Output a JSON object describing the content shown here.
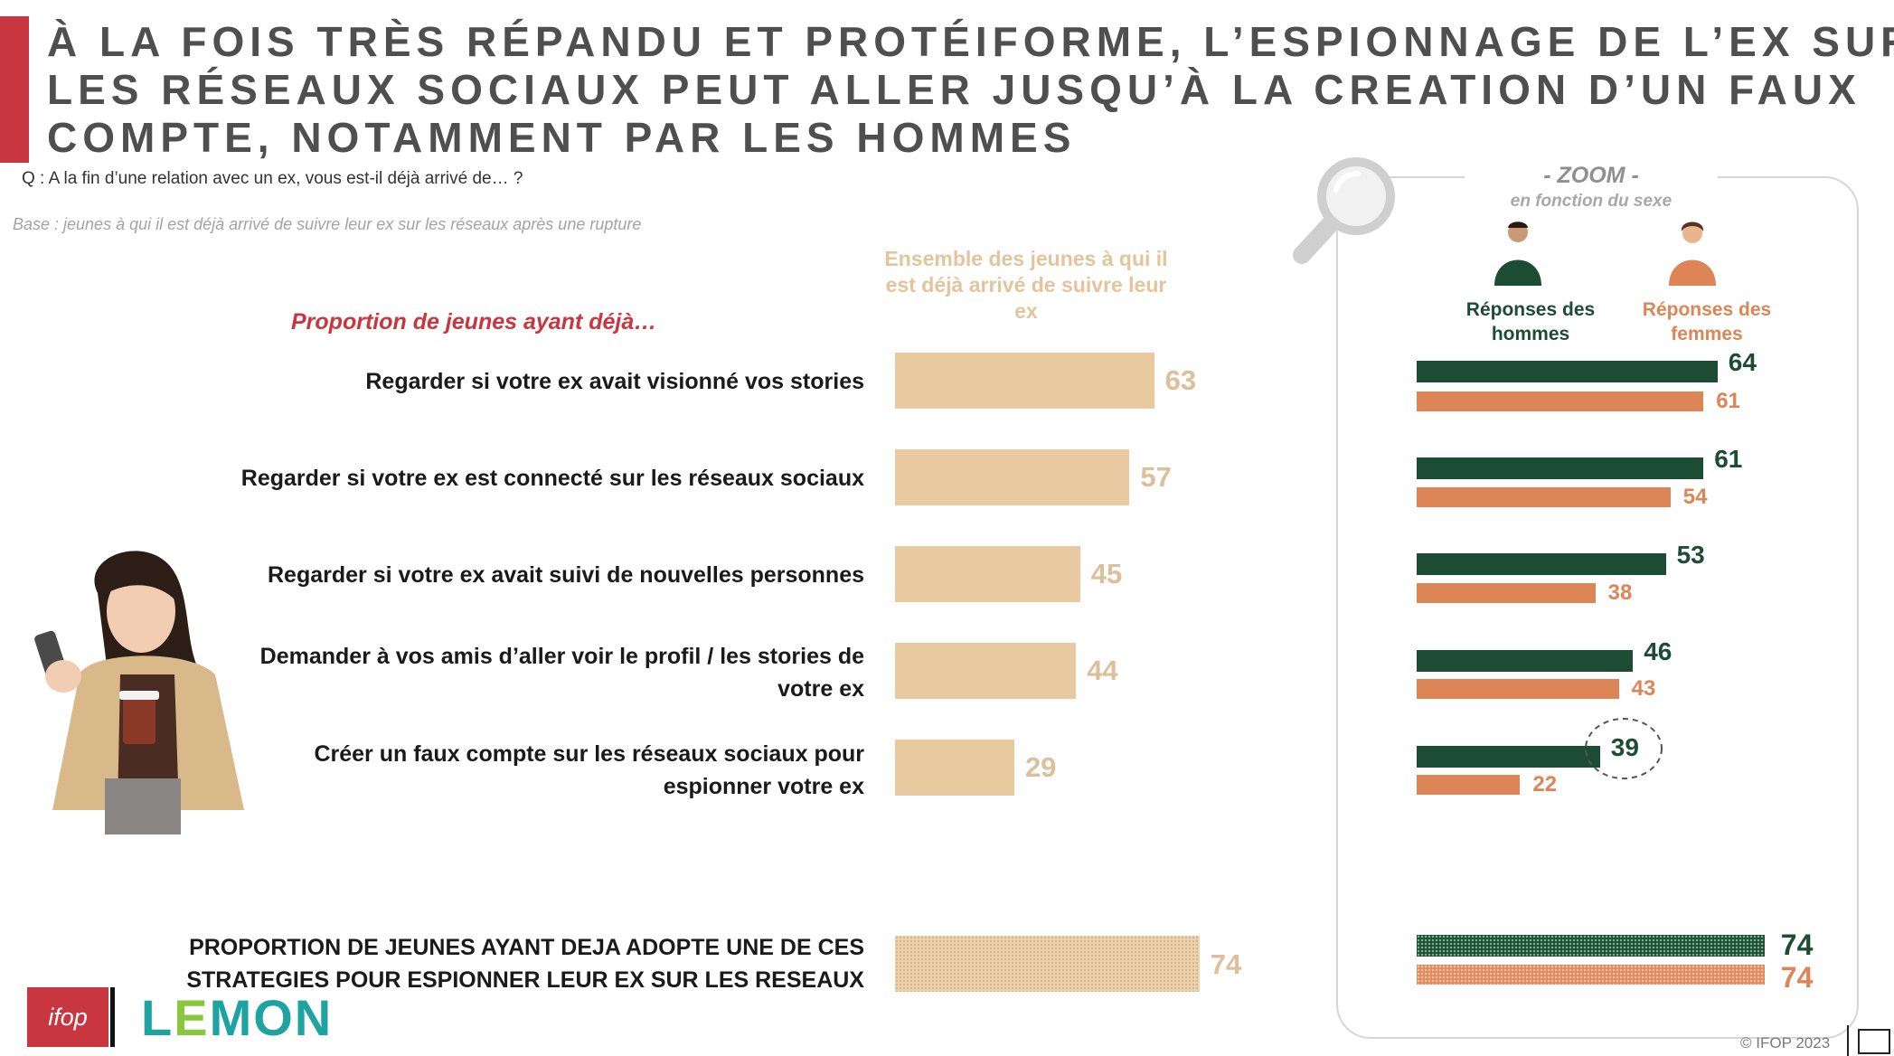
{
  "title_lines": [
    "À LA FOIS TRÈS RÉPANDU ET PROTÉIFORME, L’ESPIONNAGE DE L’EX SUR",
    "LES RÉSEAUX SOCIAUX PEUT ALLER JUSQU’À LA CREATION D’UN FAUX",
    "COMPTE, NOTAMMENT PAR LES HOMMES"
  ],
  "question": "Q : A la fin d’une relation avec un ex, vous est-il déjà arrivé de… ?",
  "base": "Base : jeunes à qui il est déjà arrivé de suivre leur ex sur les réseaux après une rupture",
  "proportion_label": "Proportion de jeunes ayant déjà…",
  "column_header": "Ensemble des jeunes à qui il est déjà arrivé de suivre leur ex",
  "zoom": {
    "title": "- ZOOM -",
    "subtitle": "en fonction du sexe",
    "men_label": "Réponses des hommes",
    "women_label": "Réponses des femmes"
  },
  "total_label": "PROPORTION DE JEUNES AYANT DEJA ADOPTE UNE DE CES STRATEGIES POUR ESPIONNER LEUR EX SUR LES RESEAUX",
  "logos": {
    "ifop": "ifop",
    "lemon_prefix": "L",
    "lemon_e": "E",
    "lemon_suffix": "MON"
  },
  "copyright": "© IFOP 2023",
  "colors": {
    "overall": "#e9c99f",
    "men": "#1c4d34",
    "women": "#dd8556",
    "accent": "#c8363f"
  },
  "chart_data": [
    {
      "type": "bar",
      "orientation": "horizontal",
      "title": "Ensemble des jeunes à qui il est déjà arrivé de suivre leur ex",
      "categories": [
        "Regarder si votre ex avait visionné vos stories",
        "Regarder si votre ex est connecté sur les réseaux sociaux",
        "Regarder si votre ex avait suivi de nouvelles personnes",
        "Demander à vos amis d’aller voir le profil / les stories de votre ex",
        "Créer un faux compte sur les réseaux sociaux pour espionner votre ex"
      ],
      "values": [
        63,
        57,
        45,
        44,
        29
      ],
      "total": {
        "label": "PROPORTION DE JEUNES AYANT DEJA ADOPTE UNE DE CES STRATEGIES POUR ESPIONNER LEUR EX SUR LES RESEAUX",
        "value": 74
      }
    },
    {
      "type": "bar",
      "orientation": "horizontal",
      "title": "- ZOOM -",
      "subtitle": "en fonction du sexe",
      "series": [
        {
          "name": "Réponses des hommes",
          "values": [
            64,
            61,
            53,
            46,
            39
          ],
          "total": 74
        },
        {
          "name": "Réponses des femmes",
          "values": [
            61,
            54,
            38,
            43,
            22
          ],
          "total": 74
        }
      ]
    }
  ]
}
